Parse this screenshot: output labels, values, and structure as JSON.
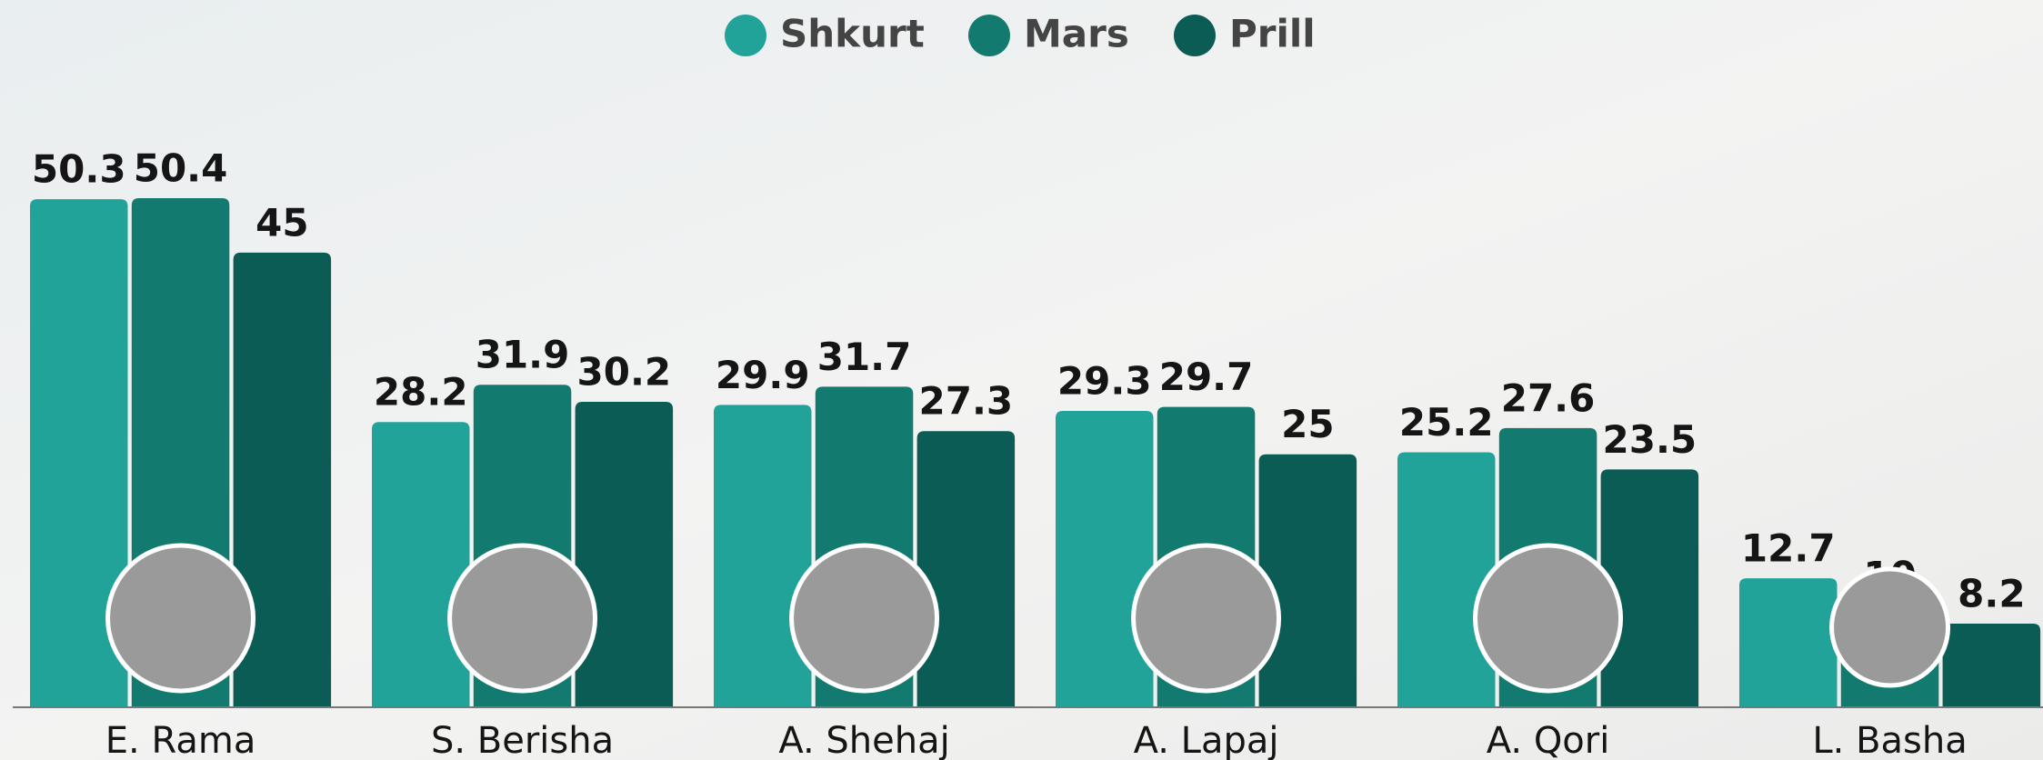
{
  "chart_data": {
    "type": "bar",
    "categories": [
      "E. Rama",
      "S. Berisha",
      "A. Shehaj",
      "A. Lapaj",
      "A. Qori",
      "L. Basha"
    ],
    "series": [
      {
        "name": "Shkurt",
        "color": "#22a39a",
        "values": [
          50.3,
          28.2,
          29.9,
          29.3,
          25.2,
          12.7
        ]
      },
      {
        "name": "Mars",
        "color": "#137a70",
        "values": [
          50.4,
          31.9,
          31.7,
          29.7,
          27.6,
          10
        ]
      },
      {
        "name": "Prill",
        "color": "#0b5c55",
        "values": [
          45,
          30.2,
          27.3,
          25,
          23.5,
          8.2
        ]
      }
    ],
    "legend": "top"
  }
}
